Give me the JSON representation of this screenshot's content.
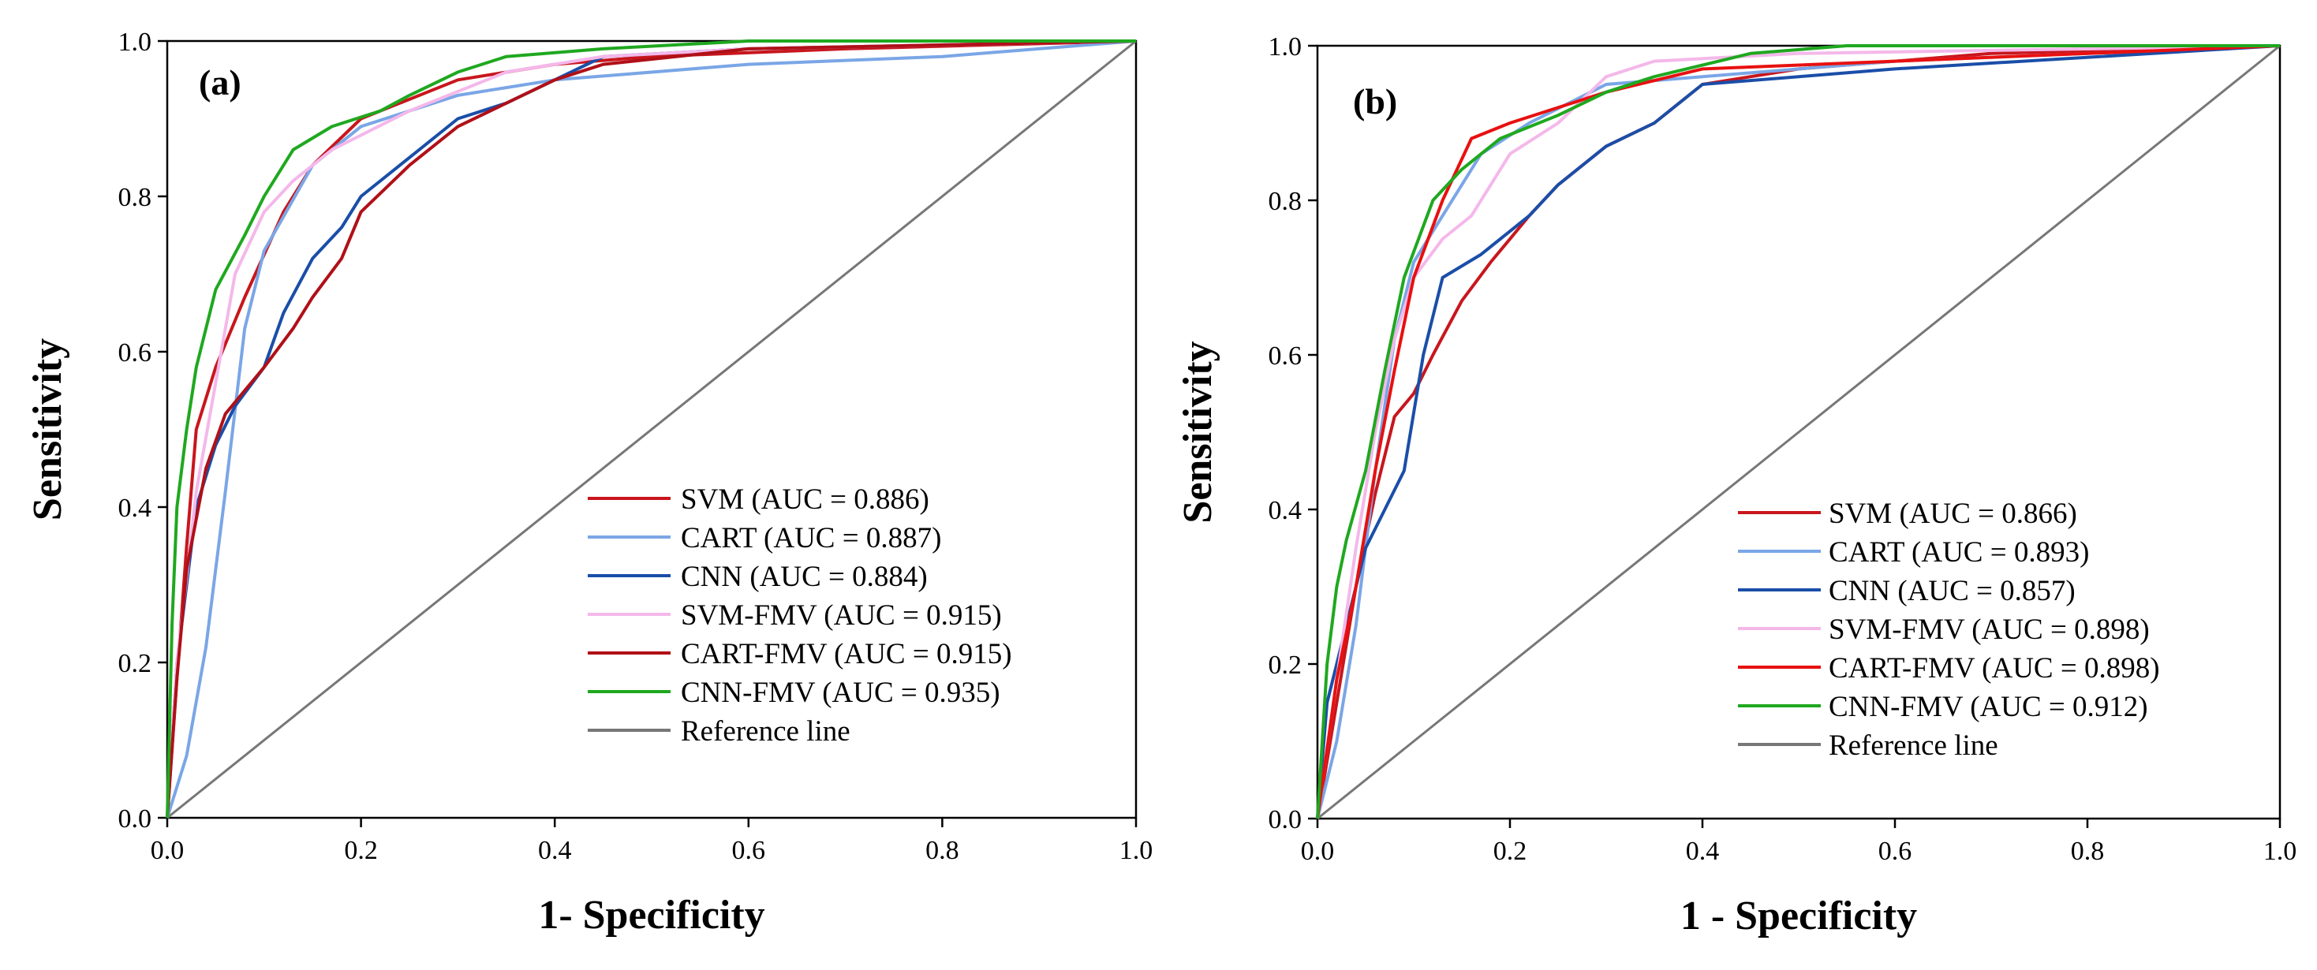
{
  "chart_data": [
    {
      "type": "line",
      "panel_label": "(a)",
      "xlabel": "1- Specificity",
      "ylabel": "Sensitivity",
      "xlim": [
        0,
        1
      ],
      "ylim": [
        0,
        1
      ],
      "xticks": [
        "0.0",
        "0.2",
        "0.4",
        "0.6",
        "0.8",
        "1.0"
      ],
      "yticks": [
        "0.0",
        "0.2",
        "0.4",
        "0.6",
        "0.8",
        "1.0"
      ],
      "legend_position": "bottom-right",
      "series": [
        {
          "name": "SVM (AUC = 0.886)",
          "color": "#c8161d",
          "points": [
            [
              0,
              0
            ],
            [
              0.01,
              0.18
            ],
            [
              0.02,
              0.35
            ],
            [
              0.03,
              0.5
            ],
            [
              0.05,
              0.58
            ],
            [
              0.08,
              0.67
            ],
            [
              0.12,
              0.78
            ],
            [
              0.15,
              0.84
            ],
            [
              0.2,
              0.9
            ],
            [
              0.3,
              0.95
            ],
            [
              0.4,
              0.97
            ],
            [
              0.5,
              0.98
            ],
            [
              0.7,
              0.99
            ],
            [
              1,
              1
            ]
          ]
        },
        {
          "name": "CART (AUC = 0.887)",
          "color": "#7aa6e6",
          "points": [
            [
              0,
              0
            ],
            [
              0.02,
              0.08
            ],
            [
              0.04,
              0.22
            ],
            [
              0.06,
              0.42
            ],
            [
              0.08,
              0.63
            ],
            [
              0.1,
              0.73
            ],
            [
              0.15,
              0.84
            ],
            [
              0.2,
              0.89
            ],
            [
              0.3,
              0.93
            ],
            [
              0.4,
              0.95
            ],
            [
              0.6,
              0.97
            ],
            [
              0.8,
              0.98
            ],
            [
              1,
              1
            ]
          ]
        },
        {
          "name": "CNN (AUC = 0.884)",
          "color": "#1a4ea8",
          "points": [
            [
              0,
              0
            ],
            [
              0.01,
              0.2
            ],
            [
              0.02,
              0.3
            ],
            [
              0.03,
              0.4
            ],
            [
              0.05,
              0.48
            ],
            [
              0.07,
              0.53
            ],
            [
              0.1,
              0.58
            ],
            [
              0.12,
              0.65
            ],
            [
              0.15,
              0.72
            ],
            [
              0.18,
              0.76
            ],
            [
              0.2,
              0.8
            ],
            [
              0.25,
              0.85
            ],
            [
              0.3,
              0.9
            ],
            [
              0.35,
              0.92
            ],
            [
              0.4,
              0.95
            ],
            [
              0.45,
              0.98
            ],
            [
              0.6,
              0.99
            ],
            [
              1,
              1
            ]
          ]
        },
        {
          "name": "SVM-FMV (AUC = 0.915)",
          "color": "#f4b8ea",
          "points": [
            [
              0,
              0
            ],
            [
              0.01,
              0.2
            ],
            [
              0.03,
              0.42
            ],
            [
              0.05,
              0.56
            ],
            [
              0.07,
              0.7
            ],
            [
              0.1,
              0.78
            ],
            [
              0.13,
              0.82
            ],
            [
              0.17,
              0.86
            ],
            [
              0.25,
              0.91
            ],
            [
              0.35,
              0.96
            ],
            [
              0.45,
              0.98
            ],
            [
              0.6,
              0.99
            ],
            [
              1,
              1
            ]
          ]
        },
        {
          "name": "CART-FMV (AUC = 0.915)",
          "color": "#b01018",
          "points": [
            [
              0,
              0
            ],
            [
              0.01,
              0.18
            ],
            [
              0.02,
              0.32
            ],
            [
              0.04,
              0.45
            ],
            [
              0.06,
              0.52
            ],
            [
              0.08,
              0.55
            ],
            [
              0.1,
              0.58
            ],
            [
              0.13,
              0.63
            ],
            [
              0.15,
              0.67
            ],
            [
              0.18,
              0.72
            ],
            [
              0.2,
              0.78
            ],
            [
              0.25,
              0.84
            ],
            [
              0.3,
              0.89
            ],
            [
              0.35,
              0.92
            ],
            [
              0.4,
              0.95
            ],
            [
              0.45,
              0.97
            ],
            [
              0.6,
              0.99
            ],
            [
              1,
              1
            ]
          ]
        },
        {
          "name": "CNN-FMV (AUC = 0.935)",
          "color": "#1fa81f",
          "points": [
            [
              0,
              0
            ],
            [
              0.005,
              0.25
            ],
            [
              0.01,
              0.4
            ],
            [
              0.02,
              0.5
            ],
            [
              0.03,
              0.58
            ],
            [
              0.05,
              0.68
            ],
            [
              0.08,
              0.75
            ],
            [
              0.1,
              0.8
            ],
            [
              0.13,
              0.86
            ],
            [
              0.17,
              0.89
            ],
            [
              0.22,
              0.91
            ],
            [
              0.25,
              0.93
            ],
            [
              0.3,
              0.96
            ],
            [
              0.35,
              0.98
            ],
            [
              0.45,
              0.99
            ],
            [
              0.6,
              1
            ],
            [
              1,
              1
            ]
          ]
        },
        {
          "name": "Reference line",
          "color": "#777777",
          "points": [
            [
              0,
              0
            ],
            [
              1,
              1
            ]
          ]
        }
      ]
    },
    {
      "type": "line",
      "panel_label": "(b)",
      "xlabel": "1 - Specificity",
      "ylabel": "Sensitivity",
      "xlim": [
        0,
        1
      ],
      "ylim": [
        0,
        1
      ],
      "xticks": [
        "0.0",
        "0.2",
        "0.4",
        "0.6",
        "0.8",
        "1.0"
      ],
      "yticks": [
        "0.0",
        "0.2",
        "0.4",
        "0.6",
        "0.8",
        "1.0"
      ],
      "legend_position": "bottom-right",
      "series": [
        {
          "name": "SVM (AUC = 0.866)",
          "color": "#c8161d",
          "points": [
            [
              0,
              0
            ],
            [
              0.02,
              0.15
            ],
            [
              0.04,
              0.3
            ],
            [
              0.06,
              0.42
            ],
            [
              0.08,
              0.52
            ],
            [
              0.1,
              0.55
            ],
            [
              0.12,
              0.6
            ],
            [
              0.15,
              0.67
            ],
            [
              0.18,
              0.72
            ],
            [
              0.22,
              0.78
            ],
            [
              0.25,
              0.82
            ],
            [
              0.3,
              0.87
            ],
            [
              0.35,
              0.9
            ],
            [
              0.4,
              0.95
            ],
            [
              0.5,
              0.97
            ],
            [
              0.7,
              0.99
            ],
            [
              1,
              1
            ]
          ]
        },
        {
          "name": "CART (AUC = 0.893)",
          "color": "#7aa6e6",
          "points": [
            [
              0,
              0
            ],
            [
              0.02,
              0.1
            ],
            [
              0.04,
              0.25
            ],
            [
              0.06,
              0.45
            ],
            [
              0.08,
              0.62
            ],
            [
              0.1,
              0.72
            ],
            [
              0.13,
              0.78
            ],
            [
              0.17,
              0.86
            ],
            [
              0.22,
              0.9
            ],
            [
              0.3,
              0.95
            ],
            [
              0.4,
              0.96
            ],
            [
              0.6,
              0.98
            ],
            [
              1,
              1
            ]
          ]
        },
        {
          "name": "CNN (AUC = 0.857)",
          "color": "#1a4ea8",
          "points": [
            [
              0,
              0
            ],
            [
              0.01,
              0.15
            ],
            [
              0.03,
              0.25
            ],
            [
              0.05,
              0.35
            ],
            [
              0.07,
              0.4
            ],
            [
              0.09,
              0.45
            ],
            [
              0.11,
              0.6
            ],
            [
              0.13,
              0.7
            ],
            [
              0.17,
              0.73
            ],
            [
              0.22,
              0.78
            ],
            [
              0.25,
              0.82
            ],
            [
              0.3,
              0.87
            ],
            [
              0.35,
              0.9
            ],
            [
              0.4,
              0.95
            ],
            [
              0.5,
              0.96
            ],
            [
              0.6,
              0.97
            ],
            [
              1,
              1
            ]
          ]
        },
        {
          "name": "SVM-FMV (AUC = 0.898)",
          "color": "#f4b8ea",
          "points": [
            [
              0,
              0
            ],
            [
              0.02,
              0.18
            ],
            [
              0.04,
              0.35
            ],
            [
              0.06,
              0.5
            ],
            [
              0.08,
              0.62
            ],
            [
              0.1,
              0.7
            ],
            [
              0.13,
              0.75
            ],
            [
              0.16,
              0.78
            ],
            [
              0.2,
              0.86
            ],
            [
              0.25,
              0.9
            ],
            [
              0.3,
              0.96
            ],
            [
              0.35,
              0.98
            ],
            [
              0.5,
              0.99
            ],
            [
              1,
              1
            ]
          ]
        },
        {
          "name": "CART-FMV (AUC = 0.898)",
          "color": "#e81010",
          "points": [
            [
              0,
              0
            ],
            [
              0.02,
              0.18
            ],
            [
              0.04,
              0.3
            ],
            [
              0.06,
              0.45
            ],
            [
              0.08,
              0.58
            ],
            [
              0.1,
              0.7
            ],
            [
              0.13,
              0.8
            ],
            [
              0.16,
              0.88
            ],
            [
              0.2,
              0.9
            ],
            [
              0.25,
              0.92
            ],
            [
              0.3,
              0.94
            ],
            [
              0.4,
              0.97
            ],
            [
              0.6,
              0.98
            ],
            [
              0.8,
              0.99
            ],
            [
              1,
              1
            ]
          ]
        },
        {
          "name": "CNN-FMV (AUC = 0.912)",
          "color": "#1fa81f",
          "points": [
            [
              0,
              0
            ],
            [
              0.01,
              0.2
            ],
            [
              0.02,
              0.3
            ],
            [
              0.03,
              0.36
            ],
            [
              0.05,
              0.45
            ],
            [
              0.07,
              0.58
            ],
            [
              0.09,
              0.7
            ],
            [
              0.12,
              0.8
            ],
            [
              0.15,
              0.84
            ],
            [
              0.19,
              0.88
            ],
            [
              0.25,
              0.91
            ],
            [
              0.3,
              0.94
            ],
            [
              0.35,
              0.96
            ],
            [
              0.45,
              0.99
            ],
            [
              0.55,
              1
            ],
            [
              1,
              1
            ]
          ]
        },
        {
          "name": "Reference line",
          "color": "#777777",
          "points": [
            [
              0,
              0
            ],
            [
              1,
              1
            ]
          ]
        }
      ]
    }
  ]
}
